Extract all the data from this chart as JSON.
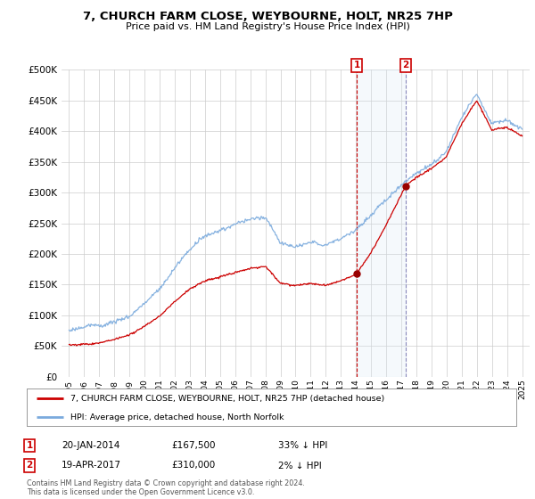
{
  "title": "7, CHURCH FARM CLOSE, WEYBOURNE, HOLT, NR25 7HP",
  "subtitle": "Price paid vs. HM Land Registry's House Price Index (HPI)",
  "legend_line1": "7, CHURCH FARM CLOSE, WEYBOURNE, HOLT, NR25 7HP (detached house)",
  "legend_line2": "HPI: Average price, detached house, North Norfolk",
  "annotation1": {
    "label": "1",
    "date": "20-JAN-2014",
    "price": "£167,500",
    "note": "33% ↓ HPI",
    "x_year": 2014.05,
    "y_val": 167500
  },
  "annotation2": {
    "label": "2",
    "date": "19-APR-2017",
    "price": "£310,000",
    "note": "2% ↓ HPI",
    "x_year": 2017.3,
    "y_val": 310000
  },
  "footer": "Contains HM Land Registry data © Crown copyright and database right 2024.\nThis data is licensed under the Open Government Licence v3.0.",
  "ylim": [
    0,
    500000
  ],
  "yticks": [
    0,
    50000,
    100000,
    150000,
    200000,
    250000,
    300000,
    350000,
    400000,
    450000,
    500000
  ],
  "xlim": [
    1994.5,
    2025.5
  ],
  "red_color": "#cc0000",
  "blue_color": "#7aaadd",
  "shade_color": "#d8e8f5",
  "marker_color": "#990000",
  "box_color": "#cc0000",
  "grid_color": "#cccccc",
  "vline1_color": "#cc0000",
  "vline2_color": "#8888bb"
}
